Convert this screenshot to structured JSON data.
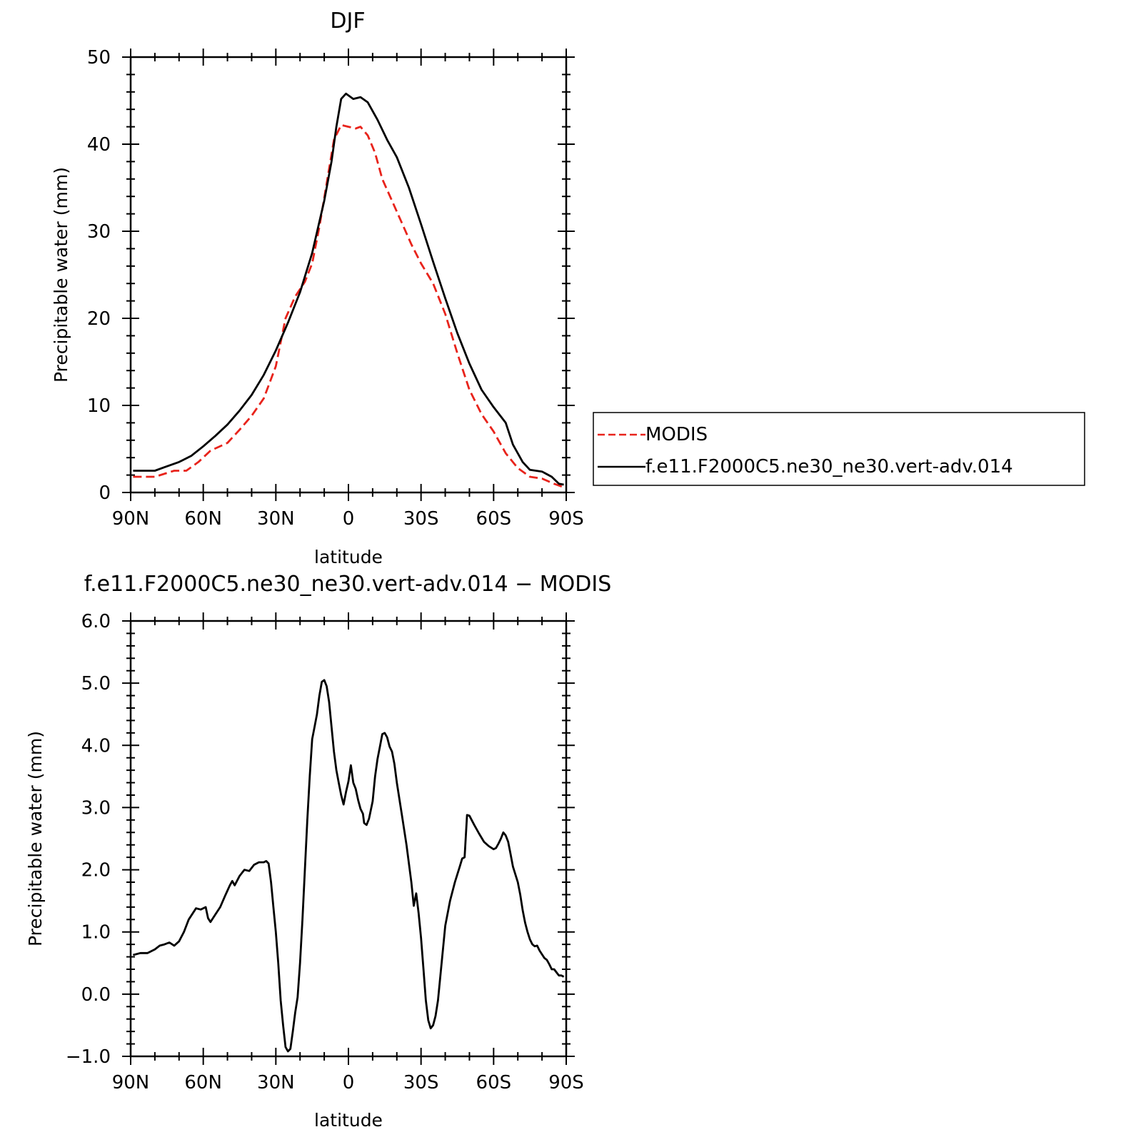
{
  "chart_data": [
    {
      "type": "line",
      "title": "DJF",
      "xlabel": "latitude",
      "ylabel": "Precipitable water (mm)",
      "x_ticks": [
        {
          "value": -90,
          "label": "90N"
        },
        {
          "value": -60,
          "label": "60N"
        },
        {
          "value": -30,
          "label": "30N"
        },
        {
          "value": 0,
          "label": "0"
        },
        {
          "value": 30,
          "label": "30S"
        },
        {
          "value": 60,
          "label": "60S"
        },
        {
          "value": 90,
          "label": "90S"
        }
      ],
      "y_ticks": [
        {
          "value": 0,
          "label": "0"
        },
        {
          "value": 10,
          "label": "10"
        },
        {
          "value": 20,
          "label": "20"
        },
        {
          "value": 30,
          "label": "30"
        },
        {
          "value": 40,
          "label": "40"
        },
        {
          "value": 50,
          "label": "50"
        }
      ],
      "xlim": [
        -90,
        90
      ],
      "ylim": [
        0,
        50
      ],
      "grid": false,
      "legend_position": "right",
      "series": [
        {
          "name": "MODIS",
          "color": "#e8231b",
          "dash": true,
          "points": [
            [
              -89,
              1.8
            ],
            [
              -80,
              1.8
            ],
            [
              -72,
              2.5
            ],
            [
              -67,
              2.5
            ],
            [
              -62,
              3.5
            ],
            [
              -57,
              4.8
            ],
            [
              -50,
              5.7
            ],
            [
              -45,
              7.2
            ],
            [
              -40,
              8.8
            ],
            [
              -35,
              10.8
            ],
            [
              -30,
              14.5
            ],
            [
              -26,
              20.0
            ],
            [
              -22,
              22.5
            ],
            [
              -18,
              24.2
            ],
            [
              -15,
              26.3
            ],
            [
              -12,
              30.5
            ],
            [
              -9,
              35.5
            ],
            [
              -6,
              40.5
            ],
            [
              -3,
              42.2
            ],
            [
              0,
              42.0
            ],
            [
              3,
              41.8
            ],
            [
              5,
              42.0
            ],
            [
              8,
              41.0
            ],
            [
              11,
              39.0
            ],
            [
              14,
              36.0
            ],
            [
              18,
              33.5
            ],
            [
              22,
              31.0
            ],
            [
              26,
              28.5
            ],
            [
              30,
              26.3
            ],
            [
              35,
              24.0
            ],
            [
              40,
              20.5
            ],
            [
              45,
              16.0
            ],
            [
              50,
              11.8
            ],
            [
              55,
              9.0
            ],
            [
              60,
              7.0
            ],
            [
              65,
              4.5
            ],
            [
              70,
              2.8
            ],
            [
              75,
              1.8
            ],
            [
              80,
              1.6
            ],
            [
              85,
              1.0
            ],
            [
              89,
              0.6
            ]
          ]
        },
        {
          "name": "f.e11.F2000C5.ne30_ne30.vert-adv.014",
          "color": "#000000",
          "dash": false,
          "points": [
            [
              -89,
              2.5
            ],
            [
              -80,
              2.5
            ],
            [
              -76,
              2.9
            ],
            [
              -70,
              3.5
            ],
            [
              -65,
              4.2
            ],
            [
              -60,
              5.3
            ],
            [
              -55,
              6.5
            ],
            [
              -50,
              7.8
            ],
            [
              -45,
              9.4
            ],
            [
              -40,
              11.2
            ],
            [
              -35,
              13.5
            ],
            [
              -30,
              16.3
            ],
            [
              -25,
              19.5
            ],
            [
              -20,
              23.0
            ],
            [
              -15,
              27.5
            ],
            [
              -10,
              33.5
            ],
            [
              -7,
              38.0
            ],
            [
              -5,
              42.0
            ],
            [
              -3,
              45.2
            ],
            [
              -1,
              45.8
            ],
            [
              2,
              45.2
            ],
            [
              5,
              45.4
            ],
            [
              8,
              44.8
            ],
            [
              12,
              42.8
            ],
            [
              16,
              40.5
            ],
            [
              20,
              38.5
            ],
            [
              25,
              35.0
            ],
            [
              30,
              30.8
            ],
            [
              35,
              26.5
            ],
            [
              40,
              22.3
            ],
            [
              45,
              18.3
            ],
            [
              50,
              14.8
            ],
            [
              55,
              11.8
            ],
            [
              60,
              9.8
            ],
            [
              65,
              8.0
            ],
            [
              68,
              5.5
            ],
            [
              72,
              3.5
            ],
            [
              75,
              2.6
            ],
            [
              80,
              2.4
            ],
            [
              84,
              1.8
            ],
            [
              87,
              1.0
            ],
            [
              89,
              0.9
            ]
          ]
        }
      ]
    },
    {
      "type": "line",
      "title": "f.e11.F2000C5.ne30_ne30.vert-adv.014 − MODIS",
      "xlabel": "latitude",
      "ylabel": "Precipitable water (mm)",
      "x_ticks": [
        {
          "value": -90,
          "label": "90N"
        },
        {
          "value": -60,
          "label": "60N"
        },
        {
          "value": -30,
          "label": "30N"
        },
        {
          "value": 0,
          "label": "0"
        },
        {
          "value": 30,
          "label": "30S"
        },
        {
          "value": 60,
          "label": "60S"
        },
        {
          "value": 90,
          "label": "90S"
        }
      ],
      "y_ticks": [
        {
          "value": -1,
          "label": "−1.0"
        },
        {
          "value": 0,
          "label": "0.0"
        },
        {
          "value": 1,
          "label": "1.0"
        },
        {
          "value": 2,
          "label": "2.0"
        },
        {
          "value": 3,
          "label": "3.0"
        },
        {
          "value": 4,
          "label": "4.0"
        },
        {
          "value": 5,
          "label": "5.0"
        },
        {
          "value": 6,
          "label": "6.0"
        }
      ],
      "xlim": [
        -90,
        90
      ],
      "ylim": [
        -1,
        6
      ],
      "grid": false,
      "series": [
        {
          "color": "#000000",
          "dash": false,
          "points": [
            [
              -89,
              0.63
            ],
            [
              -86,
              0.66
            ],
            [
              -83,
              0.66
            ],
            [
              -80,
              0.72
            ],
            [
              -78,
              0.78
            ],
            [
              -76,
              0.8
            ],
            [
              -74,
              0.83
            ],
            [
              -72,
              0.78
            ],
            [
              -70,
              0.85
            ],
            [
              -68,
              1.0
            ],
            [
              -66,
              1.2
            ],
            [
              -63,
              1.38
            ],
            [
              -61,
              1.36
            ],
            [
              -59,
              1.4
            ],
            [
              -58,
              1.22
            ],
            [
              -57,
              1.16
            ],
            [
              -55,
              1.28
            ],
            [
              -53,
              1.4
            ],
            [
              -51,
              1.58
            ],
            [
              -49,
              1.75
            ],
            [
              -48,
              1.82
            ],
            [
              -47,
              1.75
            ],
            [
              -45,
              1.9
            ],
            [
              -43,
              2.0
            ],
            [
              -41,
              1.98
            ],
            [
              -39,
              2.08
            ],
            [
              -37,
              2.12
            ],
            [
              -35,
              2.12
            ],
            [
              -34,
              2.14
            ],
            [
              -33,
              2.1
            ],
            [
              -32,
              1.8
            ],
            [
              -31,
              1.4
            ],
            [
              -30,
              1.0
            ],
            [
              -29,
              0.5
            ],
            [
              -28,
              -0.1
            ],
            [
              -27,
              -0.5
            ],
            [
              -26,
              -0.85
            ],
            [
              -25,
              -0.92
            ],
            [
              -24,
              -0.88
            ],
            [
              -23,
              -0.6
            ],
            [
              -22,
              -0.3
            ],
            [
              -21,
              -0.05
            ],
            [
              -20,
              0.5
            ],
            [
              -19,
              1.2
            ],
            [
              -18,
              2.0
            ],
            [
              -17,
              2.8
            ],
            [
              -16,
              3.5
            ],
            [
              -15,
              4.1
            ],
            [
              -14,
              4.3
            ],
            [
              -13,
              4.5
            ],
            [
              -12,
              4.8
            ],
            [
              -11,
              5.02
            ],
            [
              -10,
              5.05
            ],
            [
              -9,
              4.95
            ],
            [
              -8,
              4.7
            ],
            [
              -7,
              4.3
            ],
            [
              -6,
              3.9
            ],
            [
              -5,
              3.6
            ],
            [
              -4,
              3.4
            ],
            [
              -3,
              3.2
            ],
            [
              -2,
              3.05
            ],
            [
              -1,
              3.25
            ],
            [
              0,
              3.42
            ],
            [
              1,
              3.68
            ],
            [
              2,
              3.4
            ],
            [
              3,
              3.3
            ],
            [
              4,
              3.12
            ],
            [
              5,
              2.98
            ],
            [
              6,
              2.9
            ],
            [
              6.5,
              2.75
            ],
            [
              7.5,
              2.72
            ],
            [
              8.5,
              2.82
            ],
            [
              10,
              3.1
            ],
            [
              11,
              3.5
            ],
            [
              12,
              3.78
            ],
            [
              13,
              3.98
            ],
            [
              14,
              4.18
            ],
            [
              15,
              4.2
            ],
            [
              16,
              4.13
            ],
            [
              17,
              3.98
            ],
            [
              18,
              3.9
            ],
            [
              19,
              3.7
            ],
            [
              20,
              3.4
            ],
            [
              22,
              2.9
            ],
            [
              24,
              2.4
            ],
            [
              25,
              2.1
            ],
            [
              26,
              1.8
            ],
            [
              27,
              1.42
            ],
            [
              28,
              1.62
            ],
            [
              29,
              1.3
            ],
            [
              30,
              0.9
            ],
            [
              31,
              0.4
            ],
            [
              32,
              -0.1
            ],
            [
              33,
              -0.42
            ],
            [
              34,
              -0.55
            ],
            [
              35,
              -0.5
            ],
            [
              36,
              -0.35
            ],
            [
              37,
              -0.1
            ],
            [
              38,
              0.3
            ],
            [
              39,
              0.7
            ],
            [
              40,
              1.1
            ],
            [
              42,
              1.5
            ],
            [
              44,
              1.8
            ],
            [
              46,
              2.05
            ],
            [
              47,
              2.18
            ],
            [
              48,
              2.2
            ],
            [
              49,
              2.88
            ],
            [
              50,
              2.87
            ],
            [
              52,
              2.72
            ],
            [
              54,
              2.58
            ],
            [
              56,
              2.45
            ],
            [
              58,
              2.38
            ],
            [
              60,
              2.33
            ],
            [
              61,
              2.35
            ],
            [
              62,
              2.42
            ],
            [
              63,
              2.5
            ],
            [
              64,
              2.6
            ],
            [
              65,
              2.55
            ],
            [
              66,
              2.45
            ],
            [
              67,
              2.25
            ],
            [
              68,
              2.05
            ],
            [
              70,
              1.8
            ],
            [
              71,
              1.6
            ],
            [
              72,
              1.35
            ],
            [
              73,
              1.15
            ],
            [
              74,
              1.0
            ],
            [
              75,
              0.88
            ],
            [
              76,
              0.8
            ],
            [
              77,
              0.77
            ],
            [
              78,
              0.78
            ],
            [
              79,
              0.7
            ],
            [
              80,
              0.64
            ],
            [
              81,
              0.58
            ],
            [
              82,
              0.55
            ],
            [
              83,
              0.48
            ],
            [
              84,
              0.4
            ],
            [
              85,
              0.4
            ],
            [
              86,
              0.35
            ],
            [
              87,
              0.3
            ],
            [
              88,
              0.3
            ],
            [
              89,
              0.28
            ]
          ]
        }
      ]
    }
  ]
}
